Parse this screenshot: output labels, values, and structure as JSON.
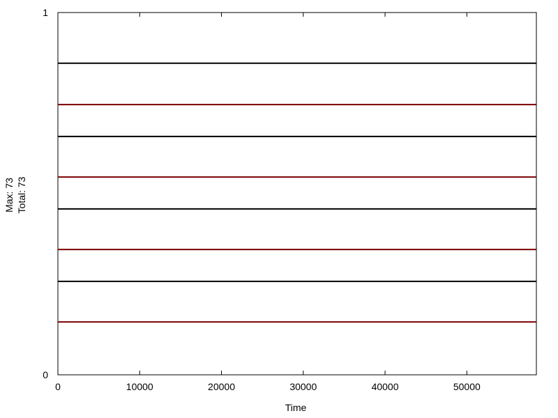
{
  "chart_data": {
    "type": "line",
    "title": "",
    "xlabel": "Time",
    "ylabel_lines": [
      "Max: 73",
      "Total: 73"
    ],
    "xlim": [
      0,
      58500
    ],
    "ylim": [
      0,
      1
    ],
    "x_ticks": [
      0,
      10000,
      20000,
      30000,
      40000,
      50000
    ],
    "x_tick_labels": [
      "0",
      "10000",
      "20000",
      "30000",
      "40000",
      "50000"
    ],
    "y_ticks": [
      0,
      1
    ],
    "y_tick_labels": [
      "0",
      "1"
    ],
    "grid": false,
    "series": [
      {
        "x": [
          0,
          58500
        ],
        "y": [
          0.86,
          0.86
        ],
        "color": "#000000"
      },
      {
        "x": [
          0,
          58500
        ],
        "y": [
          0.746,
          0.746
        ],
        "color": "#7a0000"
      },
      {
        "x": [
          0,
          58500
        ],
        "y": [
          0.658,
          0.658
        ],
        "color": "#000000"
      },
      {
        "x": [
          0,
          58500
        ],
        "y": [
          0.546,
          0.546
        ],
        "color": "#7a0000"
      },
      {
        "x": [
          0,
          58500
        ],
        "y": [
          0.458,
          0.458
        ],
        "color": "#000000"
      },
      {
        "x": [
          0,
          58500
        ],
        "y": [
          0.346,
          0.346
        ],
        "color": "#7a0000"
      },
      {
        "x": [
          0,
          58500
        ],
        "y": [
          0.258,
          0.258
        ],
        "color": "#000000"
      },
      {
        "x": [
          0,
          58500
        ],
        "y": [
          0.146,
          0.146
        ],
        "color": "#7a0000"
      }
    ]
  }
}
